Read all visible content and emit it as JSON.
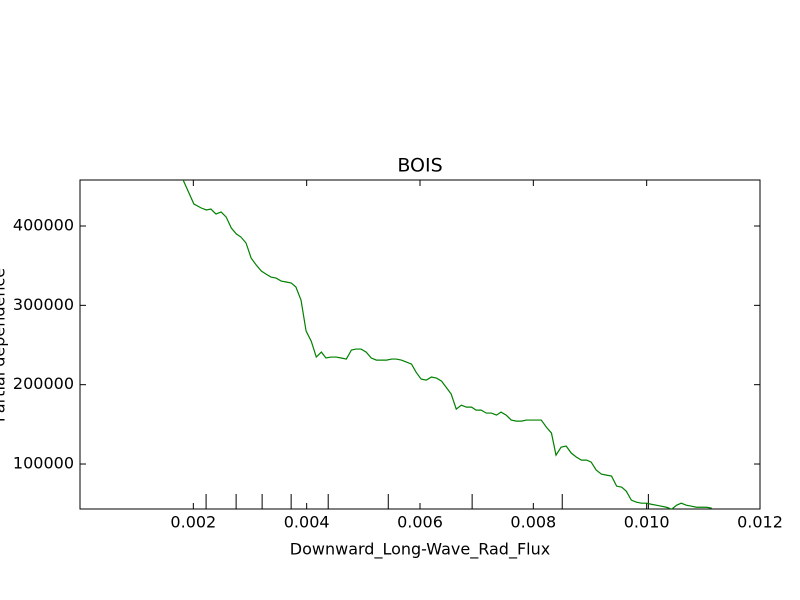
{
  "chart_data": {
    "type": "line",
    "title": "BOIS",
    "x_label": "Downward_Long-Wave_Rad_Flux",
    "y_label": "Partial dependence",
    "x": [
      0.00182,
      0.00201,
      0.00214,
      0.00223,
      0.00231,
      0.0024,
      0.00249,
      0.00258,
      0.00267,
      0.00276,
      0.00284,
      0.00293,
      0.00302,
      0.00311,
      0.0032,
      0.00328,
      0.00337,
      0.00346,
      0.00355,
      0.00364,
      0.00373,
      0.00381,
      0.0039,
      0.00399,
      0.00408,
      0.00417,
      0.00426,
      0.00434,
      0.00443,
      0.00452,
      0.00461,
      0.0047,
      0.00479,
      0.00487,
      0.00496,
      0.00505,
      0.00514,
      0.00523,
      0.00532,
      0.00541,
      0.0055,
      0.00558,
      0.00567,
      0.00576,
      0.00585,
      0.00593,
      0.00602,
      0.00611,
      0.0062,
      0.00629,
      0.00638,
      0.00646,
      0.00655,
      0.00664,
      0.00673,
      0.00682,
      0.00691,
      0.00699,
      0.00708,
      0.00717,
      0.00726,
      0.00735,
      0.00743,
      0.00752,
      0.00761,
      0.0077,
      0.00779,
      0.00788,
      0.00796,
      0.00805,
      0.00814,
      0.00823,
      0.00832,
      0.0084,
      0.00849,
      0.00858,
      0.00867,
      0.00876,
      0.00885,
      0.00894,
      0.00902,
      0.00911,
      0.0092,
      0.00929,
      0.00938,
      0.00947,
      0.00956,
      0.00964,
      0.00973,
      0.00982,
      0.00991,
      0.01,
      0.01008,
      0.01017,
      0.01026,
      0.01035,
      0.01044,
      0.01053,
      0.01061,
      0.0107,
      0.01079,
      0.01088,
      0.01097,
      0.01106,
      0.01115
    ],
    "series": [
      {
        "name": "BOIS",
        "color": "#008000",
        "values": [
          458000,
          427700,
          422700,
          420200,
          421400,
          415100,
          417700,
          411300,
          397500,
          389900,
          386100,
          378600,
          359600,
          350800,
          343300,
          339500,
          335700,
          334400,
          330600,
          329400,
          328100,
          323100,
          306700,
          267600,
          255000,
          234800,
          241100,
          233600,
          234800,
          234800,
          233600,
          232300,
          243700,
          244900,
          244900,
          241100,
          233600,
          231000,
          231000,
          231000,
          232300,
          232300,
          231000,
          228500,
          226000,
          215900,
          207100,
          205800,
          209600,
          208300,
          204500,
          196900,
          188200,
          169200,
          174200,
          171700,
          171700,
          167900,
          167900,
          164200,
          164200,
          161700,
          165400,
          161700,
          155400,
          154100,
          154100,
          155400,
          155400,
          155400,
          155400,
          146500,
          139000,
          111200,
          121300,
          122600,
          113700,
          108700,
          104900,
          104900,
          102400,
          92300,
          87300,
          86000,
          84800,
          72100,
          70800,
          65800,
          54400,
          51900,
          50600,
          50600,
          49300,
          48100,
          46800,
          45500,
          43000,
          48100,
          50600,
          48100,
          46800,
          45500,
          45500,
          45500,
          44300
        ]
      }
    ],
    "deciles": [
      0.002225,
      0.002755,
      0.003214,
      0.003726,
      0.00438,
      0.00544,
      0.00692,
      0.00851,
      0.01003
    ],
    "xlim": [
      0,
      0.012
    ],
    "ylim": [
      43300,
      458000
    ],
    "xticks": [
      0.002,
      0.004,
      0.006,
      0.008,
      {
        "value": 0.01,
        "label": "0.010"
      },
      0.012
    ],
    "yticks": [
      100000,
      200000,
      300000,
      400000
    ]
  }
}
